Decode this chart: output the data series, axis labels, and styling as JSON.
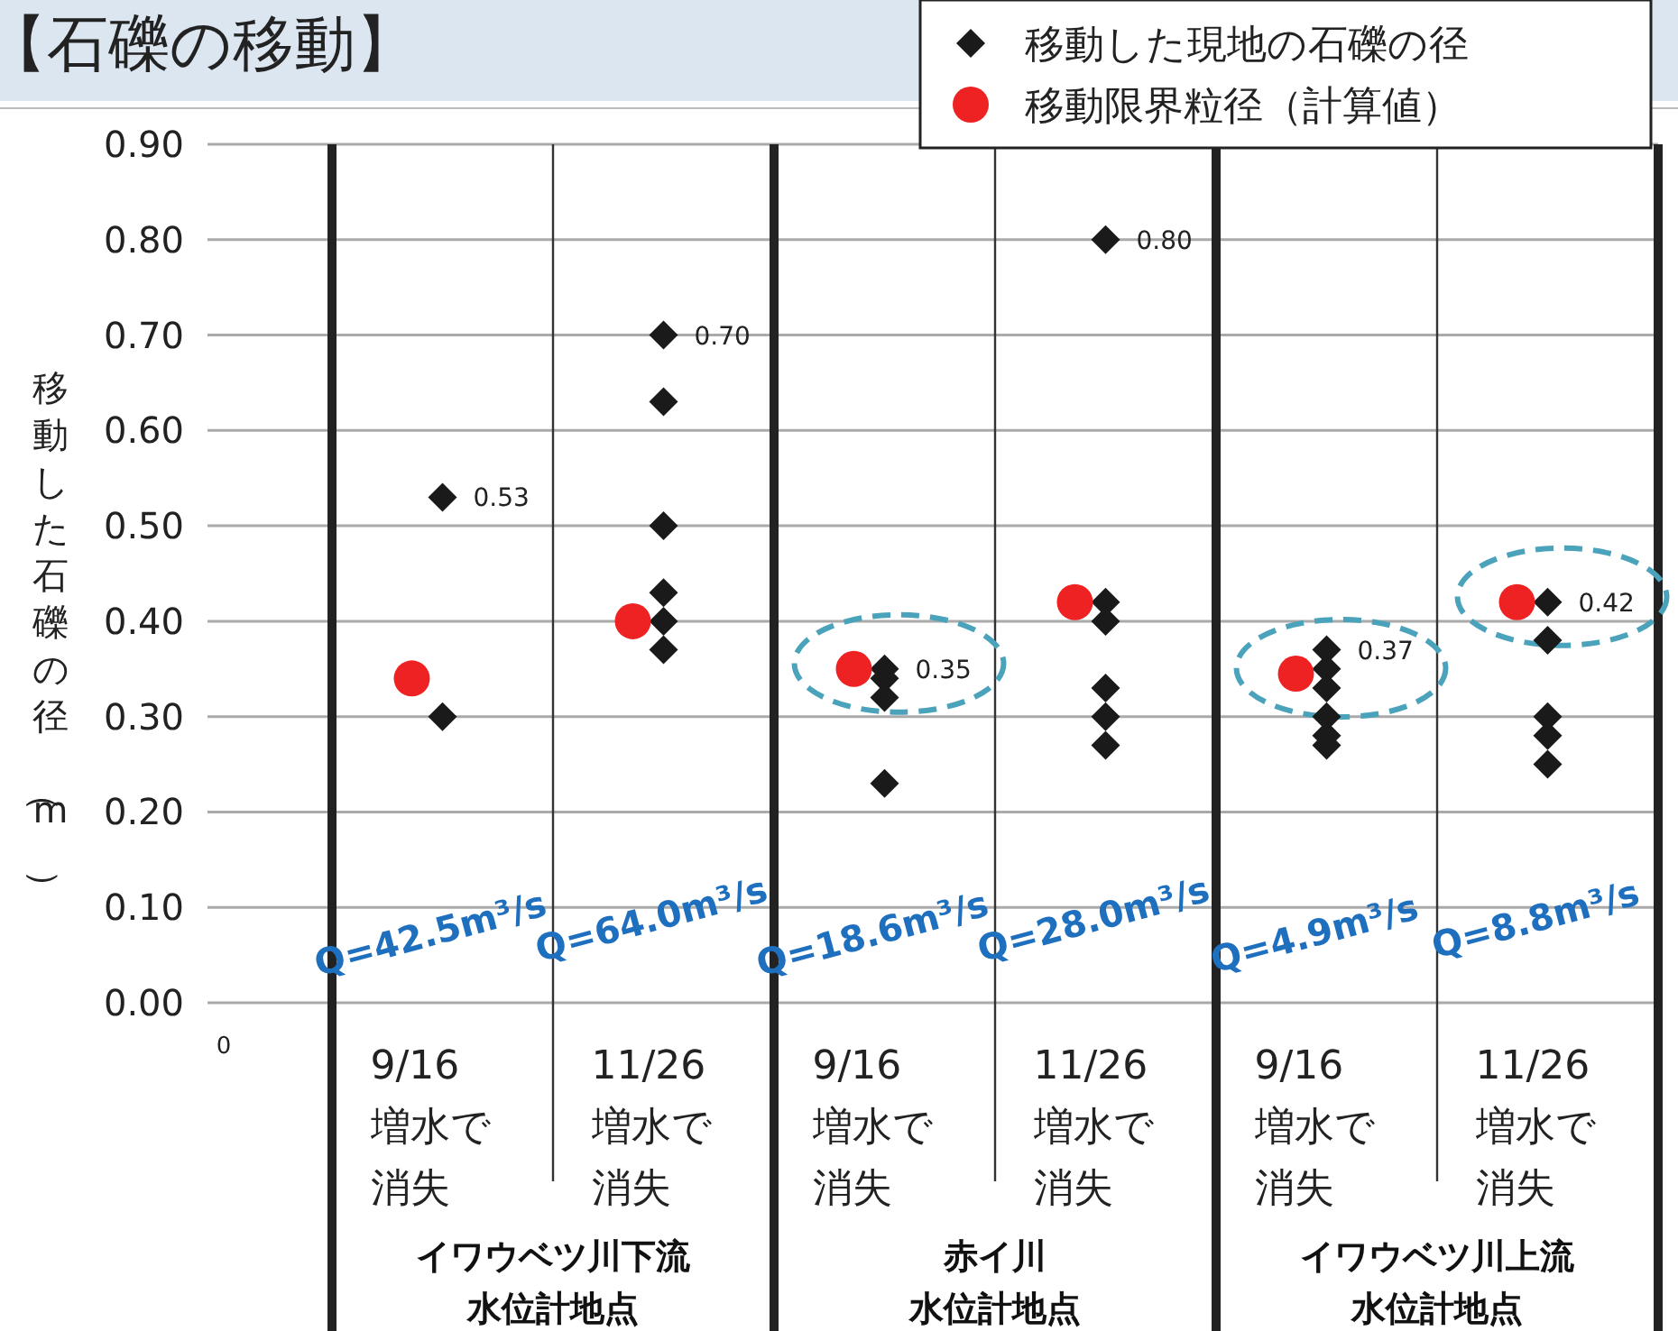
{
  "chart_data": {
    "type": "scatter",
    "title": "【石礫の移動】",
    "ylabel": "移動した石礫の径（m）",
    "categories": [
      "9/16\n増水で消失",
      "11/26\n増水で消失",
      "9/16\n増水で消失",
      "11/26\n増水で消失",
      "9/16\n増水で消失",
      "11/26\n増水で消失"
    ],
    "ylim": [
      0,
      0.9
    ],
    "yticks": [
      {
        "value": 0,
        "label": "0.00"
      },
      {
        "value": 0.1,
        "label": "0.10"
      },
      {
        "value": 0.2,
        "label": "0.20"
      },
      {
        "value": 0.3,
        "label": "0.30"
      },
      {
        "value": 0.4,
        "label": "0.40"
      },
      {
        "value": 0.5,
        "label": "0.50"
      },
      {
        "value": 0.6,
        "label": "0.60"
      },
      {
        "value": 0.7,
        "label": "0.70"
      },
      {
        "value": 0.8,
        "label": "0.80"
      },
      {
        "value": 0.9,
        "label": "0.90"
      }
    ],
    "grid": "y",
    "legend": "top right",
    "series": [
      {
        "name": "移動した現地の石礫の径",
        "color": "#1a1a1a",
        "marker": "diamond",
        "values": [
          0.53,
          0.7,
          0.35,
          0.8,
          0.37,
          0.42
        ],
        "value_labels": [
          "0.53",
          "0.70",
          "0.35",
          "0.80",
          "0.37",
          "0.42"
        ]
      },
      {
        "color": "#1a1a1a",
        "marker": "diamond",
        "values": [
          0.3,
          0.63,
          0.34,
          0.42,
          0.35,
          0.38
        ]
      },
      {
        "color": "#1a1a1a",
        "marker": "diamond",
        "values": [
          null,
          0.5,
          0.32,
          0.4,
          0.33,
          0.3
        ]
      },
      {
        "color": "#1a1a1a",
        "marker": "diamond",
        "values": [
          null,
          0.43,
          0.23,
          0.33,
          0.3,
          0.28
        ]
      },
      {
        "color": "#1a1a1a",
        "marker": "diamond",
        "values": [
          null,
          0.4,
          null,
          0.3,
          0.28,
          0.25
        ]
      },
      {
        "color": "#1a1a1a",
        "marker": "diamond",
        "values": [
          null,
          0.37,
          null,
          0.27,
          0.27,
          null
        ]
      },
      {
        "name": "移動限界粒径（計算値）",
        "color": "#ee2222",
        "marker": "circle",
        "values": [
          0.34,
          0.4,
          0.35,
          0.42,
          0.345,
          0.42
        ]
      }
    ],
    "annotations": [
      "Q=42.5m³/s",
      "Q=64.0m³/s",
      "Q=18.6m³/s",
      "Q=28.0m³/s",
      "Q=4.9m³/s",
      "Q=8.8m³/s",
      "イワウベツ川下流",
      "水位計地点",
      "赤イ川",
      "水位計地点",
      "イワウベツ川上流",
      "水位計地点",
      "0"
    ]
  }
}
